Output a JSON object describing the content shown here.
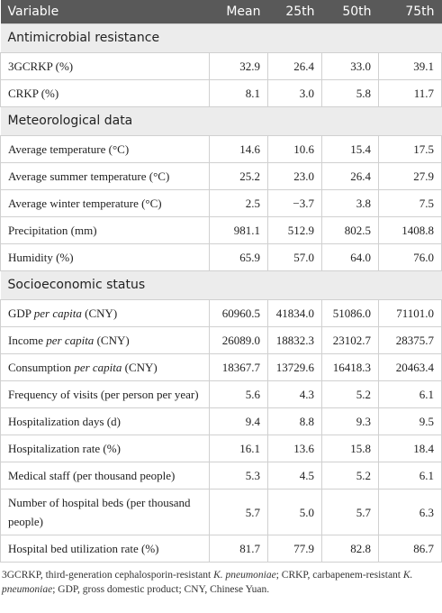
{
  "table": {
    "header": [
      "Variable",
      "Mean",
      "25th",
      "50th",
      "75th"
    ],
    "sections": [
      {
        "title": "Antimicrobial resistance",
        "rows": [
          {
            "label": "3GCRKP (%)",
            "values": [
              "32.9",
              "26.4",
              "33.0",
              "39.1"
            ]
          },
          {
            "label": "CRKP (%)",
            "values": [
              "8.1",
              "3.0",
              "5.8",
              "11.7"
            ]
          }
        ]
      },
      {
        "title": "Meteorological data",
        "rows": [
          {
            "label": "Average temperature (°C)",
            "values": [
              "14.6",
              "10.6",
              "15.4",
              "17.5"
            ]
          },
          {
            "label": "Average summer temperature (°C)",
            "values": [
              "25.2",
              "23.0",
              "26.4",
              "27.9"
            ]
          },
          {
            "label": "Average winter temperature (°C)",
            "values": [
              "2.5",
              "−3.7",
              "3.8",
              "7.5"
            ]
          },
          {
            "label": "Precipitation (mm)",
            "values": [
              "981.1",
              "512.9",
              "802.5",
              "1408.8"
            ]
          },
          {
            "label": "Humidity (%)",
            "values": [
              "65.9",
              "57.0",
              "64.0",
              "76.0"
            ]
          }
        ]
      },
      {
        "title": "Socioeconomic status",
        "rows": [
          {
            "label": [
              {
                "text": "GDP "
              },
              {
                "text": "per capita",
                "italic": true
              },
              {
                "text": " (CNY)"
              }
            ],
            "values": [
              "60960.5",
              "41834.0",
              "51086.0",
              "71101.0"
            ]
          },
          {
            "label": [
              {
                "text": "Income "
              },
              {
                "text": "per capita",
                "italic": true
              },
              {
                "text": " (CNY)"
              }
            ],
            "values": [
              "26089.0",
              "18832.3",
              "23102.7",
              "28375.7"
            ]
          },
          {
            "label": [
              {
                "text": "Consumption "
              },
              {
                "text": "per capita",
                "italic": true
              },
              {
                "text": " (CNY)"
              }
            ],
            "values": [
              "18367.7",
              "13729.6",
              "16418.3",
              "20463.4"
            ]
          },
          {
            "label": "Frequency of visits (per person per year)",
            "values": [
              "5.6",
              "4.3",
              "5.2",
              "6.1"
            ]
          },
          {
            "label": "Hospitalization days (d)",
            "values": [
              "9.4",
              "8.8",
              "9.3",
              "9.5"
            ]
          },
          {
            "label": "Hospitalization rate (%)",
            "values": [
              "16.1",
              "13.6",
              "15.8",
              "18.4"
            ]
          },
          {
            "label": "Medical staff (per thousand people)",
            "values": [
              "5.3",
              "4.5",
              "5.2",
              "6.1"
            ]
          },
          {
            "label": "Number of hospital beds (per thousand people)",
            "values": [
              "5.7",
              "5.0",
              "5.7",
              "6.3"
            ]
          },
          {
            "label": "Hospital bed utilization rate (%)",
            "values": [
              "81.7",
              "77.9",
              "82.8",
              "86.7"
            ]
          }
        ]
      }
    ]
  },
  "footnote": [
    {
      "text": "3GCRKP, third-generation cephalosporin-resistant "
    },
    {
      "text": "K. pneumoniae",
      "italic": true
    },
    {
      "text": "; CRKP, carbapenem-resistant "
    },
    {
      "text": "K. pneumoniae",
      "italic": true
    },
    {
      "text": "; GDP, gross domestic product; CNY, Chinese Yuan."
    }
  ]
}
